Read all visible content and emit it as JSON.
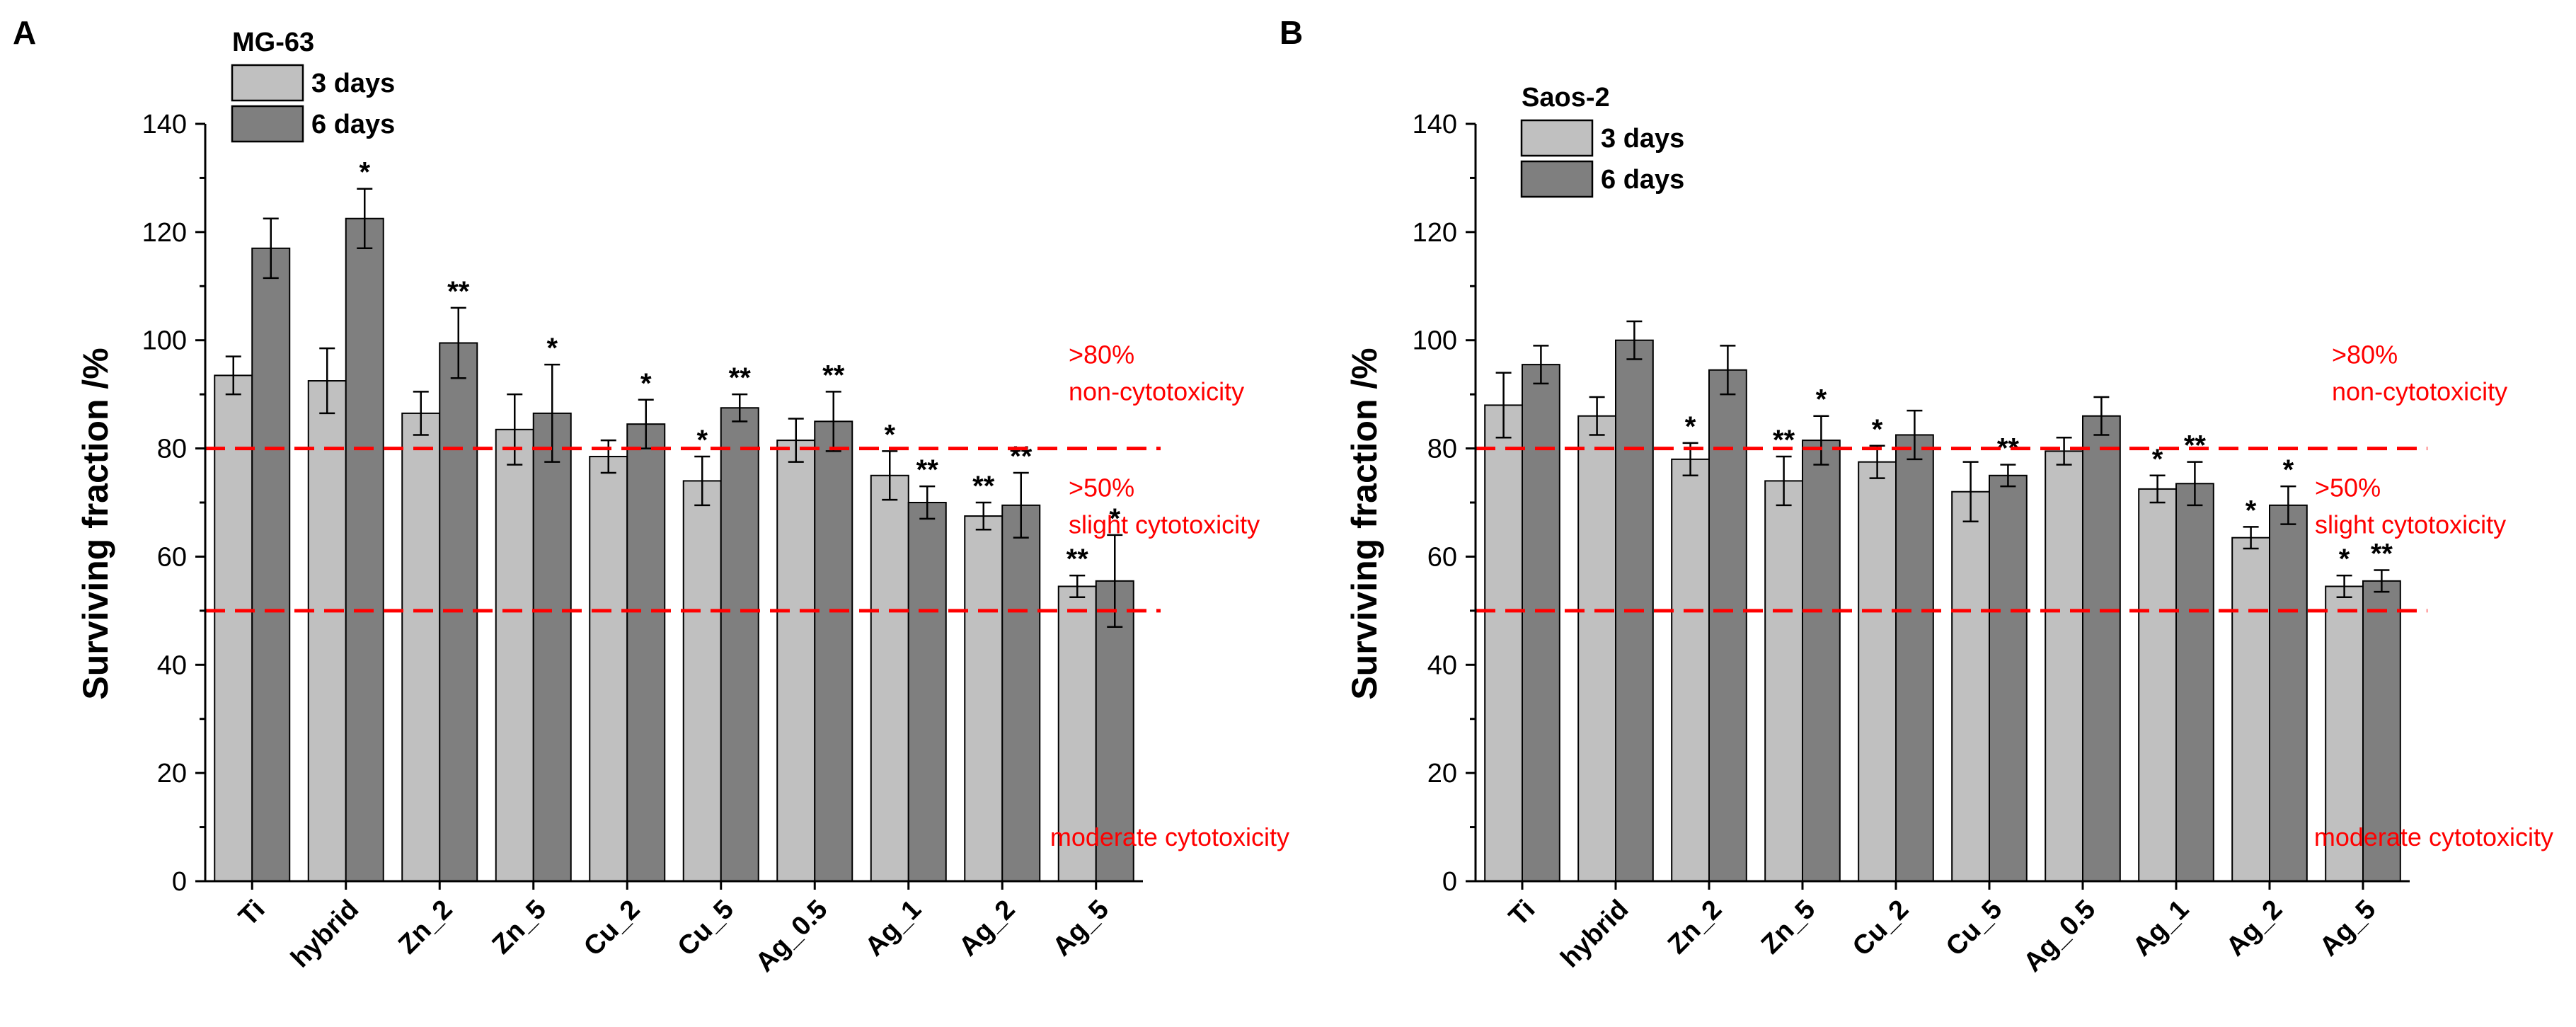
{
  "chart_data": [
    {
      "type": "bar",
      "panel_label": "A",
      "legend_title": "MG-63",
      "legend_position": "top-left",
      "ylabel": "Surviving fraction  /%",
      "xlabel": "",
      "ylim": [
        0,
        140
      ],
      "yticks": [
        0,
        20,
        40,
        60,
        80,
        100,
        120,
        140
      ],
      "grid": false,
      "categories": [
        "Ti",
        "hybrid",
        "Zn_2",
        "Zn_5",
        "Cu_2",
        "Cu_5",
        "Ag_0.5",
        "Ag_1",
        "Ag_2",
        "Ag_5"
      ],
      "series": [
        {
          "name": "3 days",
          "color": "#c0c0c0",
          "values": [
            93.5,
            92.5,
            86.5,
            83.5,
            78.5,
            74.0,
            81.5,
            75.0,
            67.5,
            54.5
          ],
          "errors": [
            3.5,
            6.0,
            4.0,
            6.5,
            3.0,
            4.5,
            4.0,
            4.5,
            2.5,
            2.0
          ],
          "significance": [
            "",
            "",
            "",
            "",
            "",
            "*",
            "",
            "*",
            "**",
            "**"
          ]
        },
        {
          "name": "6 days",
          "color": "#7f7f7f",
          "values": [
            117.0,
            122.5,
            99.5,
            86.5,
            84.5,
            87.5,
            85.0,
            70.0,
            69.5,
            55.5
          ],
          "errors": [
            5.5,
            5.5,
            6.5,
            9.0,
            4.5,
            2.5,
            5.5,
            3.0,
            6.0,
            8.5
          ],
          "significance": [
            "",
            "*",
            "**",
            "*",
            "*",
            "**",
            "**",
            "**",
            "**",
            "*"
          ]
        }
      ],
      "thresholds": [
        {
          "value": 80,
          "color": "#ff0000",
          "label_above": [
            ">80%",
            "non-cytotoxicity"
          ],
          "label_below": [
            ">50%",
            "slight cytotoxicity"
          ]
        },
        {
          "value": 50,
          "color": "#ff0000",
          "label_bottom": "moderate cytotoxicity"
        }
      ]
    },
    {
      "type": "bar",
      "panel_label": "B",
      "legend_title": "Saos-2",
      "legend_position": "top-left",
      "ylabel": "Surviving fraction  /%",
      "xlabel": "",
      "ylim": [
        0,
        140
      ],
      "yticks": [
        0,
        20,
        40,
        60,
        80,
        100,
        120,
        140
      ],
      "grid": false,
      "categories": [
        "Ti",
        "hybrid",
        "Zn_2",
        "Zn_5",
        "Cu_2",
        "Cu_5",
        "Ag_0.5",
        "Ag_1",
        "Ag_2",
        "Ag_5"
      ],
      "series": [
        {
          "name": "3 days",
          "color": "#c0c0c0",
          "values": [
            88.0,
            86.0,
            78.0,
            74.0,
            77.5,
            72.0,
            79.5,
            72.5,
            63.5,
            54.5
          ],
          "errors": [
            6.0,
            3.5,
            3.0,
            4.5,
            3.0,
            5.5,
            2.5,
            2.5,
            2.0,
            2.0
          ],
          "significance": [
            "",
            "",
            "*",
            "**",
            "*",
            "",
            "",
            "*",
            "*",
            "*"
          ]
        },
        {
          "name": "6 days",
          "color": "#7f7f7f",
          "values": [
            95.5,
            100.0,
            94.5,
            81.5,
            82.5,
            75.0,
            86.0,
            73.5,
            69.5,
            55.5
          ],
          "errors": [
            3.5,
            3.5,
            4.5,
            4.5,
            4.5,
            2.0,
            3.5,
            4.0,
            3.5,
            2.0
          ],
          "significance": [
            "",
            "",
            "",
            "*",
            "",
            "**",
            "",
            "**",
            "*",
            "**"
          ]
        }
      ],
      "thresholds": [
        {
          "value": 80,
          "color": "#ff0000",
          "label_above": [
            ">80%",
            "non-cytotoxicity"
          ],
          "label_below": [
            ">50%",
            "slight cytotoxicity"
          ]
        },
        {
          "value": 50,
          "color": "#ff0000",
          "label_bottom": "moderate cytotoxicity"
        }
      ]
    }
  ]
}
